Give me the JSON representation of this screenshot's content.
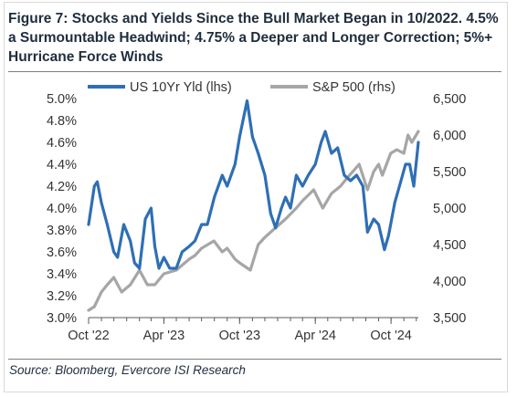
{
  "title": "Figure 7: Stocks and Yields Since the Bull Market Began in 10/2022. 4.5% a Surmountable Headwind; 4.75% a Deeper and Longer Correction; 5%+ Hurricane Force Winds",
  "source": "Source: Bloomberg, Evercore ISI Research",
  "chart_data": {
    "type": "line",
    "title": "Figure 7: Stocks and Yields Since the Bull Market Began in 10/2022. 4.5% a Surmountable Headwind; 4.75% a Deeper and Longer Correction; 5%+ Hurricane Force Winds",
    "xlabel": "",
    "x_ticks": [
      "Oct '22",
      "Apr '23",
      "Oct '23",
      "Apr '24",
      "Oct '24"
    ],
    "xlim": [
      "2022-10-01",
      "2024-12-06"
    ],
    "y_left": {
      "label": "",
      "ylim": [
        3.0,
        5.0
      ],
      "ticks": [
        "3.0%",
        "3.2%",
        "3.4%",
        "3.6%",
        "3.8%",
        "4.0%",
        "4.2%",
        "4.4%",
        "4.6%",
        "4.8%",
        "5.0%"
      ]
    },
    "y_right": {
      "label": "",
      "ylim": [
        3500,
        6500
      ],
      "ticks": [
        "3,500",
        "4,000",
        "4,500",
        "5,000",
        "5,500",
        "6,000",
        "6,500"
      ]
    },
    "legend_placement": "top",
    "grid": false,
    "series": [
      {
        "name": "US 10Yr Yld (lhs)",
        "axis": "left",
        "color": "#2e6fb5",
        "x": [
          "2022-10-01",
          "2022-10-15",
          "2022-10-22",
          "2022-11-01",
          "2022-11-15",
          "2022-12-01",
          "2022-12-10",
          "2022-12-25",
          "2023-01-10",
          "2023-01-20",
          "2023-02-01",
          "2023-02-15",
          "2023-03-01",
          "2023-03-10",
          "2023-03-20",
          "2023-04-01",
          "2023-04-15",
          "2023-05-01",
          "2023-05-15",
          "2023-06-01",
          "2023-06-15",
          "2023-07-01",
          "2023-07-15",
          "2023-08-01",
          "2023-08-20",
          "2023-09-01",
          "2023-09-20",
          "2023-10-01",
          "2023-10-19",
          "2023-11-01",
          "2023-11-15",
          "2023-12-01",
          "2023-12-15",
          "2023-12-27",
          "2024-01-10",
          "2024-01-20",
          "2024-02-01",
          "2024-02-15",
          "2024-03-01",
          "2024-03-15",
          "2024-04-01",
          "2024-04-15",
          "2024-04-25",
          "2024-05-10",
          "2024-05-25",
          "2024-06-10",
          "2024-06-25",
          "2024-07-10",
          "2024-07-25",
          "2024-08-05",
          "2024-08-20",
          "2024-09-01",
          "2024-09-15",
          "2024-09-25",
          "2024-10-10",
          "2024-10-25",
          "2024-11-05",
          "2024-11-15",
          "2024-11-25",
          "2024-12-06"
        ],
        "y": [
          3.85,
          4.2,
          4.24,
          4.05,
          3.85,
          3.6,
          3.55,
          3.85,
          3.7,
          3.5,
          3.45,
          3.9,
          4.0,
          3.65,
          3.45,
          3.55,
          3.45,
          3.45,
          3.6,
          3.65,
          3.7,
          3.85,
          3.85,
          4.1,
          4.3,
          4.2,
          4.4,
          4.65,
          4.98,
          4.65,
          4.5,
          4.3,
          3.95,
          3.82,
          4.0,
          4.1,
          4.0,
          4.3,
          4.2,
          4.3,
          4.4,
          4.6,
          4.7,
          4.5,
          4.55,
          4.3,
          4.25,
          4.3,
          4.2,
          3.78,
          3.9,
          3.85,
          3.62,
          3.75,
          4.05,
          4.25,
          4.4,
          4.4,
          4.2,
          4.6
        ]
      },
      {
        "name": "S&P 500 (rhs)",
        "axis": "right",
        "color": "#a6a6a6",
        "x": [
          "2022-10-01",
          "2022-10-15",
          "2022-11-01",
          "2022-11-15",
          "2022-12-01",
          "2022-12-20",
          "2023-01-10",
          "2023-02-01",
          "2023-02-20",
          "2023-03-10",
          "2023-04-01",
          "2023-05-01",
          "2023-06-01",
          "2023-06-15",
          "2023-07-01",
          "2023-07-31",
          "2023-08-20",
          "2023-09-01",
          "2023-09-20",
          "2023-10-01",
          "2023-10-27",
          "2023-11-15",
          "2023-12-01",
          "2023-12-31",
          "2024-01-20",
          "2024-02-15",
          "2024-03-01",
          "2024-03-28",
          "2024-04-19",
          "2024-05-10",
          "2024-06-01",
          "2024-06-15",
          "2024-07-16",
          "2024-08-05",
          "2024-08-20",
          "2024-09-01",
          "2024-09-10",
          "2024-09-30",
          "2024-10-15",
          "2024-11-01",
          "2024-11-11",
          "2024-11-20",
          "2024-12-06"
        ],
        "y": [
          3600,
          3650,
          3850,
          3950,
          4050,
          3850,
          3950,
          4150,
          3950,
          3950,
          4100,
          4150,
          4300,
          4350,
          4450,
          4550,
          4400,
          4450,
          4300,
          4250,
          4150,
          4500,
          4600,
          4750,
          4850,
          5000,
          5100,
          5250,
          5000,
          5200,
          5300,
          5400,
          5600,
          5250,
          5500,
          5600,
          5450,
          5750,
          5800,
          5750,
          6000,
          5900,
          6050
        ]
      }
    ]
  }
}
